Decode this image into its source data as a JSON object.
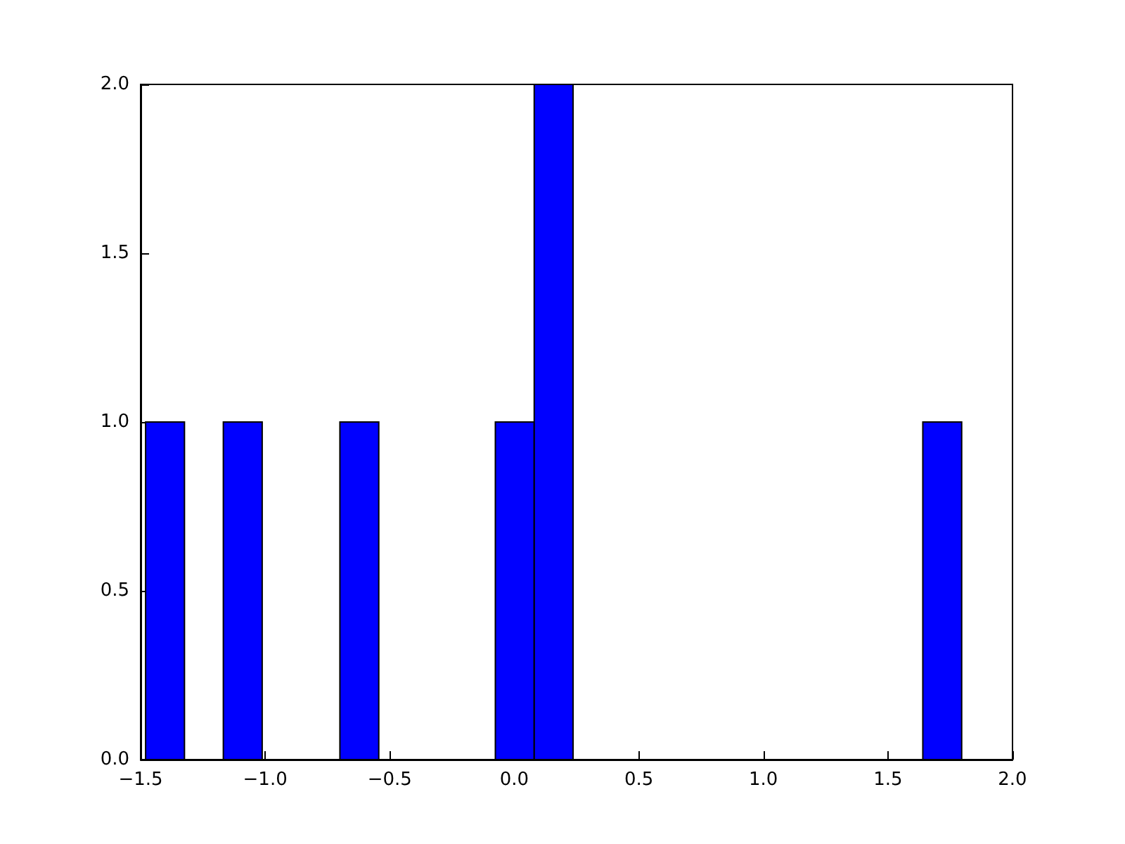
{
  "chart_data": {
    "type": "histogram",
    "color": "#0000ff",
    "bins": [
      -1.48,
      -1.324,
      -1.168,
      -1.012,
      -0.856,
      -0.7,
      -0.544,
      -0.388,
      -0.232,
      -0.076,
      0.08,
      0.236,
      0.392,
      0.548,
      0.704,
      0.86,
      1.016,
      1.172,
      1.328,
      1.484,
      1.64,
      1.796
    ],
    "values": [
      1,
      0,
      1,
      0,
      0,
      1,
      0,
      0,
      0,
      1,
      2,
      0,
      0,
      0,
      0,
      0,
      0,
      0,
      0,
      0,
      1
    ],
    "xlim": [
      -1.5,
      2.0
    ],
    "xticks": [
      {
        "value": -1.5,
        "label": "−1.5"
      },
      {
        "value": -1.0,
        "label": "−1.0"
      },
      {
        "value": -0.5,
        "label": "−0.5"
      },
      {
        "value": 0,
        "label": "0.0"
      },
      {
        "value": 0.5,
        "label": "0.5"
      },
      {
        "value": 1.0,
        "label": "1.0"
      },
      {
        "value": 1.5,
        "label": "1.5"
      },
      {
        "value": 2.0,
        "label": "2.0"
      }
    ],
    "ylim": [
      0,
      2.0
    ],
    "yticks": [
      {
        "value": 0,
        "label": "0.0"
      },
      {
        "value": 0.5,
        "label": "0.5"
      },
      {
        "value": 1.0,
        "label": "1.0"
      },
      {
        "value": 1.5,
        "label": "1.5"
      },
      {
        "value": 2.0,
        "label": "2.0"
      }
    ],
    "grid": false
  }
}
